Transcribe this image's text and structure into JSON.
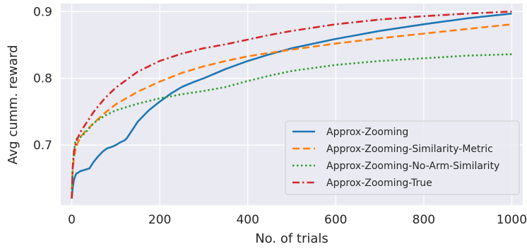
{
  "chart_data": {
    "type": "line",
    "title": "",
    "xlabel": "No. of trials",
    "ylabel": "Avg cumm. reward",
    "xlim": [
      -25,
      1025
    ],
    "ylim": [
      0.61,
      0.912
    ],
    "xticks": [
      0,
      200,
      400,
      600,
      800,
      1000
    ],
    "yticks": [
      0.7,
      0.8,
      0.9
    ],
    "ytick_labels": [
      "0.7",
      "0.8",
      "0.9"
    ],
    "grid": true,
    "background": "#eaeaf2",
    "legend_position": "lower-right",
    "series": [
      {
        "name": "Approx-Zooming",
        "color": "#1f77b4",
        "style": "solid",
        "points": [
          [
            0,
            0.62
          ],
          [
            2,
            0.635
          ],
          [
            5,
            0.648
          ],
          [
            10,
            0.657
          ],
          [
            15,
            0.659
          ],
          [
            20,
            0.661
          ],
          [
            30,
            0.663
          ],
          [
            40,
            0.665
          ],
          [
            50,
            0.675
          ],
          [
            60,
            0.683
          ],
          [
            70,
            0.69
          ],
          [
            80,
            0.695
          ],
          [
            90,
            0.697
          ],
          [
            100,
            0.7
          ],
          [
            110,
            0.704
          ],
          [
            120,
            0.707
          ],
          [
            125,
            0.71
          ],
          [
            130,
            0.715
          ],
          [
            140,
            0.725
          ],
          [
            150,
            0.735
          ],
          [
            175,
            0.752
          ],
          [
            200,
            0.765
          ],
          [
            225,
            0.777
          ],
          [
            250,
            0.787
          ],
          [
            275,
            0.794
          ],
          [
            300,
            0.8
          ],
          [
            350,
            0.814
          ],
          [
            400,
            0.826
          ],
          [
            450,
            0.836
          ],
          [
            500,
            0.845
          ],
          [
            600,
            0.859
          ],
          [
            700,
            0.871
          ],
          [
            800,
            0.881
          ],
          [
            900,
            0.89
          ],
          [
            1000,
            0.897
          ]
        ]
      },
      {
        "name": "Approx-Zooming-Similarity-Metric",
        "color": "#ff7f0e",
        "style": "dashed",
        "points": [
          [
            0,
            0.62
          ],
          [
            2,
            0.66
          ],
          [
            5,
            0.682
          ],
          [
            10,
            0.698
          ],
          [
            20,
            0.712
          ],
          [
            30,
            0.72
          ],
          [
            50,
            0.733
          ],
          [
            75,
            0.748
          ],
          [
            100,
            0.761
          ],
          [
            150,
            0.78
          ],
          [
            200,
            0.795
          ],
          [
            250,
            0.808
          ],
          [
            300,
            0.818
          ],
          [
            350,
            0.826
          ],
          [
            400,
            0.833
          ],
          [
            450,
            0.838
          ],
          [
            500,
            0.843
          ],
          [
            600,
            0.852
          ],
          [
            700,
            0.86
          ],
          [
            800,
            0.867
          ],
          [
            900,
            0.874
          ],
          [
            1000,
            0.881
          ]
        ]
      },
      {
        "name": "Approx-Zooming-No-Arm-Similarity",
        "color": "#2ca02c",
        "style": "dotted",
        "points": [
          [
            0,
            0.62
          ],
          [
            2,
            0.665
          ],
          [
            5,
            0.69
          ],
          [
            8,
            0.705
          ],
          [
            12,
            0.71
          ],
          [
            20,
            0.712
          ],
          [
            30,
            0.718
          ],
          [
            50,
            0.733
          ],
          [
            75,
            0.744
          ],
          [
            100,
            0.752
          ],
          [
            150,
            0.762
          ],
          [
            200,
            0.77
          ],
          [
            250,
            0.776
          ],
          [
            300,
            0.781
          ],
          [
            350,
            0.787
          ],
          [
            400,
            0.796
          ],
          [
            450,
            0.804
          ],
          [
            500,
            0.811
          ],
          [
            600,
            0.82
          ],
          [
            700,
            0.826
          ],
          [
            800,
            0.83
          ],
          [
            900,
            0.834
          ],
          [
            1000,
            0.836
          ]
        ]
      },
      {
        "name": "Approx-Zooming-True",
        "color": "#d62728",
        "style": "dashdot",
        "points": [
          [
            0,
            0.62
          ],
          [
            2,
            0.665
          ],
          [
            5,
            0.69
          ],
          [
            10,
            0.705
          ],
          [
            20,
            0.72
          ],
          [
            30,
            0.73
          ],
          [
            50,
            0.75
          ],
          [
            75,
            0.77
          ],
          [
            100,
            0.786
          ],
          [
            150,
            0.81
          ],
          [
            200,
            0.826
          ],
          [
            250,
            0.837
          ],
          [
            300,
            0.845
          ],
          [
            350,
            0.851
          ],
          [
            400,
            0.858
          ],
          [
            450,
            0.865
          ],
          [
            500,
            0.871
          ],
          [
            600,
            0.881
          ],
          [
            700,
            0.888
          ],
          [
            800,
            0.893
          ],
          [
            900,
            0.897
          ],
          [
            1000,
            0.9
          ]
        ]
      }
    ]
  }
}
